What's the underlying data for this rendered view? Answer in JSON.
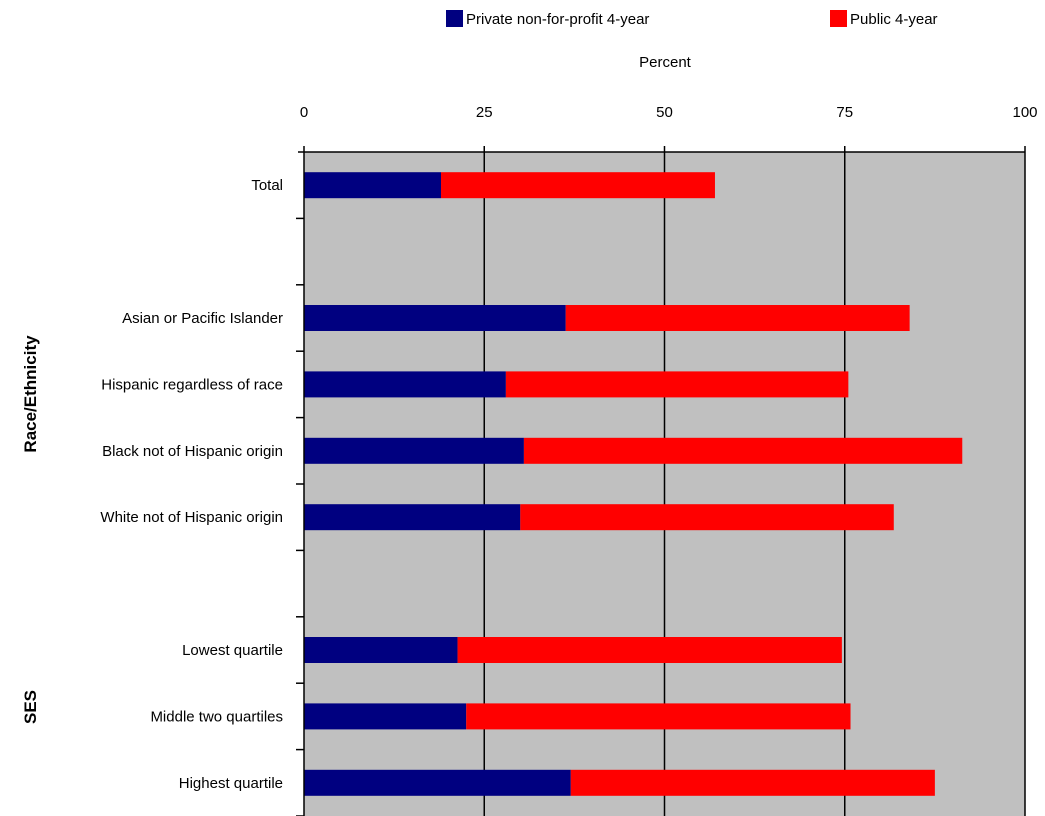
{
  "chart_data": {
    "type": "bar",
    "orientation": "horizontal",
    "stacked": true,
    "xlabel": "Percent",
    "xlim": [
      0,
      100
    ],
    "xticks": [
      0,
      25,
      50,
      75,
      100
    ],
    "grid": true,
    "legend_position": "top",
    "categories": [
      "Total",
      "",
      "Asian or Pacific Islander",
      "Hispanic regardless of race",
      "Black not of Hispanic origin",
      "White not of Hispanic origin",
      "",
      "Lowest quartile",
      "Middle two quartiles",
      "Highest quartile"
    ],
    "groups": [
      {
        "label": "Race/Ethnicity",
        "categories": [
          "Asian or Pacific Islander",
          "Hispanic regardless of race",
          "Black not of Hispanic origin",
          "White not of Hispanic origin"
        ]
      },
      {
        "label": "SES",
        "categories": [
          "Lowest quartile",
          "Middle two quartiles",
          "Highest quartile"
        ]
      }
    ],
    "series": [
      {
        "name": "Private non-for-profit 4-year",
        "color": "#000080",
        "values": [
          19,
          null,
          36.3,
          28,
          30.5,
          30,
          null,
          21.3,
          22.5,
          37
        ]
      },
      {
        "name": "Public 4-year",
        "color": "#ff0000",
        "values": [
          38,
          null,
          47.7,
          47.5,
          60.8,
          51.8,
          null,
          53.3,
          53.3,
          50.5
        ]
      }
    ],
    "plot_background": "#c0c0c0"
  }
}
